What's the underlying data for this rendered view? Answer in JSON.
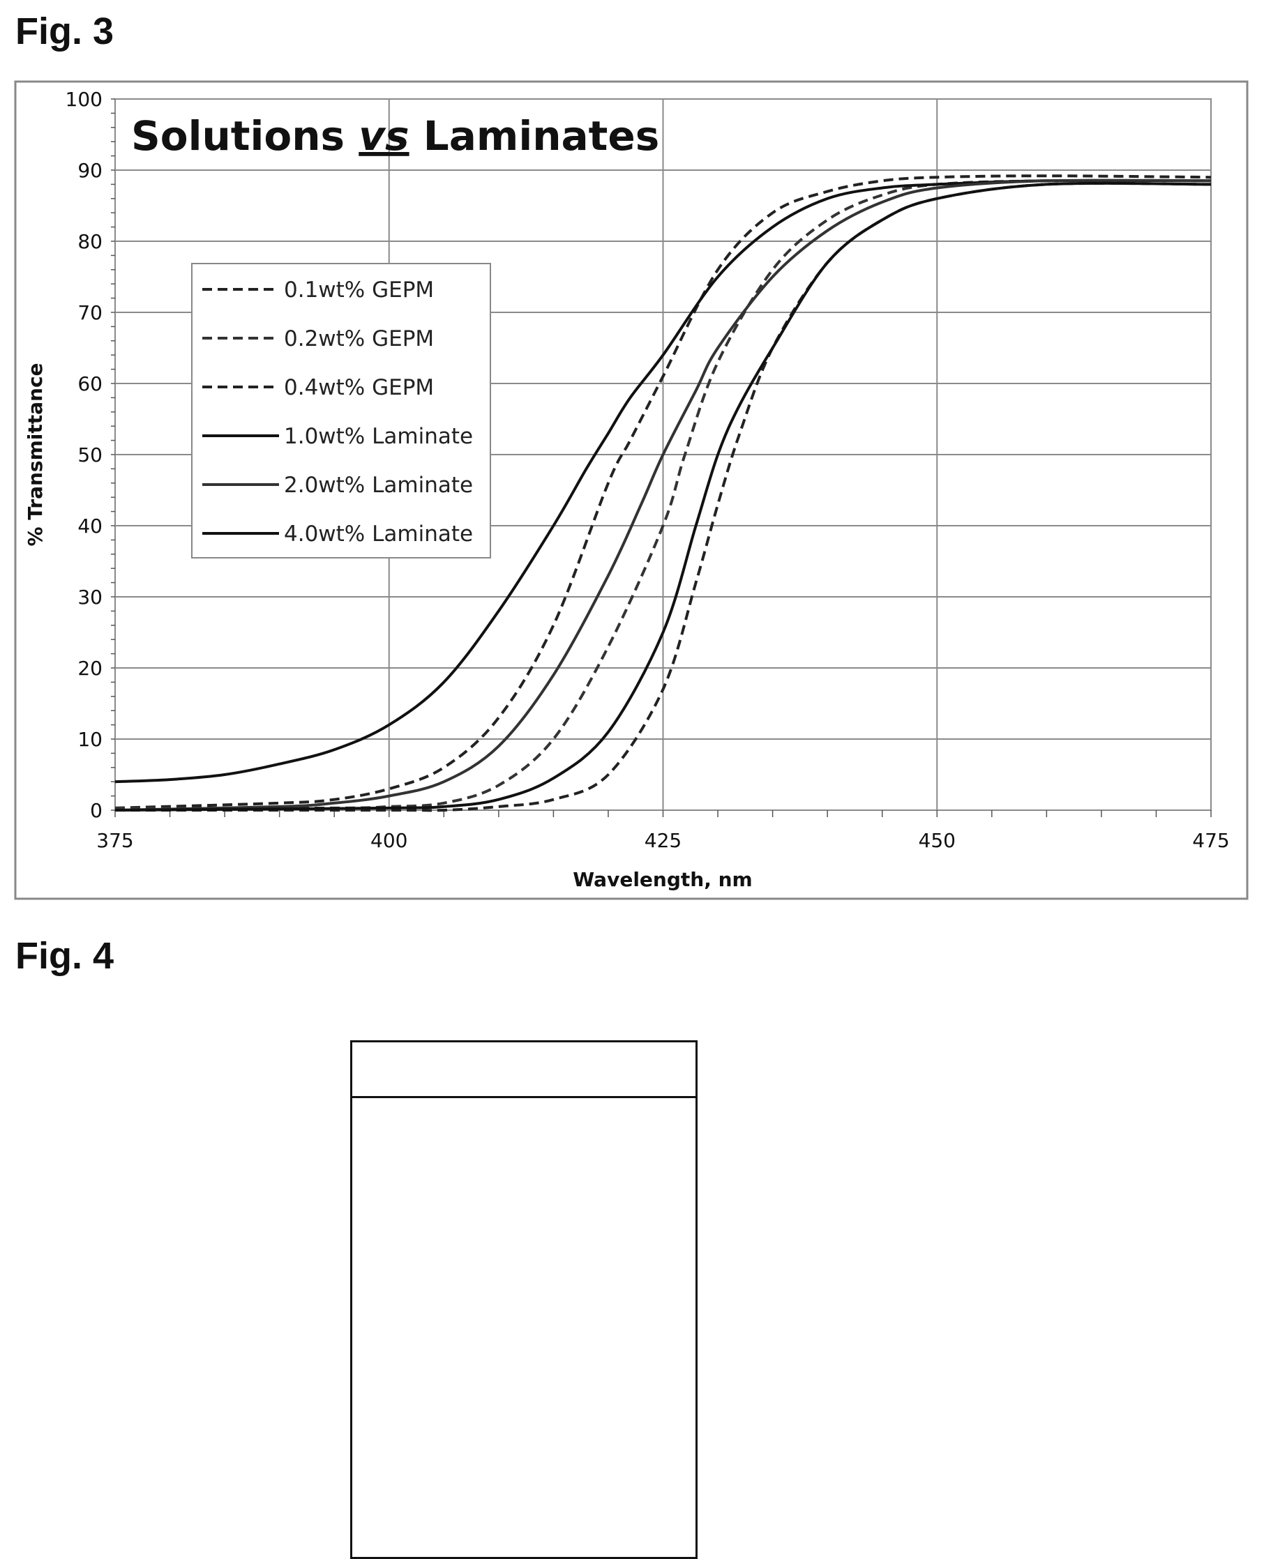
{
  "figure3": {
    "label": "Fig. 3"
  },
  "figure4": {
    "label": "Fig. 4"
  },
  "chart_data": {
    "type": "line",
    "title_parts": [
      "Solutions ",
      "vs",
      " Laminates"
    ],
    "xlabel": "Wavelength, nm",
    "ylabel": "% Transmittance",
    "xlim": [
      375,
      475
    ],
    "ylim": [
      0,
      100
    ],
    "x_ticks": [
      375,
      400,
      425,
      450,
      475
    ],
    "y_ticks": [
      0,
      10,
      20,
      30,
      40,
      50,
      60,
      70,
      80,
      90,
      100
    ],
    "grid": true,
    "legend_position": "left",
    "series": [
      {
        "name": "0.1wt% GEPM",
        "style": "dashed",
        "color": "#222222",
        "x": [
          375,
          390,
          395,
          400,
          405,
          410,
          415,
          420,
          422,
          425,
          430,
          435,
          440,
          445,
          450,
          460,
          475
        ],
        "y": [
          0.3,
          1,
          1.5,
          3,
          6,
          13,
          26,
          46,
          52,
          61,
          76,
          84,
          87,
          88.5,
          89,
          89.2,
          89
        ]
      },
      {
        "name": "0.2wt% GEPM",
        "style": "dashed",
        "color": "#333333",
        "x": [
          375,
          395,
          400,
          405,
          410,
          415,
          420,
          425,
          427,
          430,
          435,
          440,
          445,
          450,
          460,
          475
        ],
        "y": [
          0.3,
          0.3,
          0.5,
          1,
          3.5,
          10,
          23,
          40,
          50,
          63,
          76,
          83,
          86.5,
          88,
          88.5,
          88.5
        ]
      },
      {
        "name": "0.4wt% GEPM",
        "style": "dashed",
        "color": "#222222",
        "x": [
          375,
          400,
          405,
          410,
          415,
          420,
          425,
          428,
          430,
          432,
          435,
          440,
          445,
          450,
          460,
          475
        ],
        "y": [
          0,
          0,
          0,
          0.5,
          1.5,
          5,
          17,
          32,
          43,
          53,
          65,
          77,
          83,
          86,
          88,
          88
        ]
      },
      {
        "name": "1.0wt% Laminate",
        "style": "solid",
        "color": "#111111",
        "x": [
          375,
          380,
          385,
          390,
          395,
          400,
          405,
          410,
          415,
          418,
          420,
          422,
          425,
          430,
          435,
          440,
          445,
          450,
          460,
          475
        ],
        "y": [
          4,
          4.3,
          5,
          6.5,
          8.5,
          12,
          18,
          28,
          40,
          48,
          53,
          58,
          64,
          75,
          82,
          86,
          87.5,
          88,
          88.5,
          88.5
        ]
      },
      {
        "name": "2.0wt% Laminate",
        "style": "solid",
        "color": "#333333",
        "x": [
          375,
          390,
          395,
          400,
          405,
          410,
          415,
          420,
          423,
          425,
          428,
          430,
          435,
          440,
          445,
          450,
          460,
          475
        ],
        "y": [
          0,
          0.5,
          1,
          2,
          4,
          9,
          19,
          33,
          43,
          50,
          59,
          65,
          75,
          81.5,
          85.5,
          87.5,
          88.5,
          88.5
        ]
      },
      {
        "name": "4.0wt% Laminate",
        "style": "solid",
        "color": "#111111",
        "x": [
          375,
          400,
          405,
          410,
          415,
          420,
          425,
          428,
          430,
          432,
          435,
          440,
          445,
          450,
          460,
          475
        ],
        "y": [
          0,
          0.3,
          0.5,
          1.5,
          4.5,
          11,
          25,
          40,
          50,
          57,
          65,
          77,
          83,
          86,
          88,
          88
        ]
      }
    ]
  }
}
